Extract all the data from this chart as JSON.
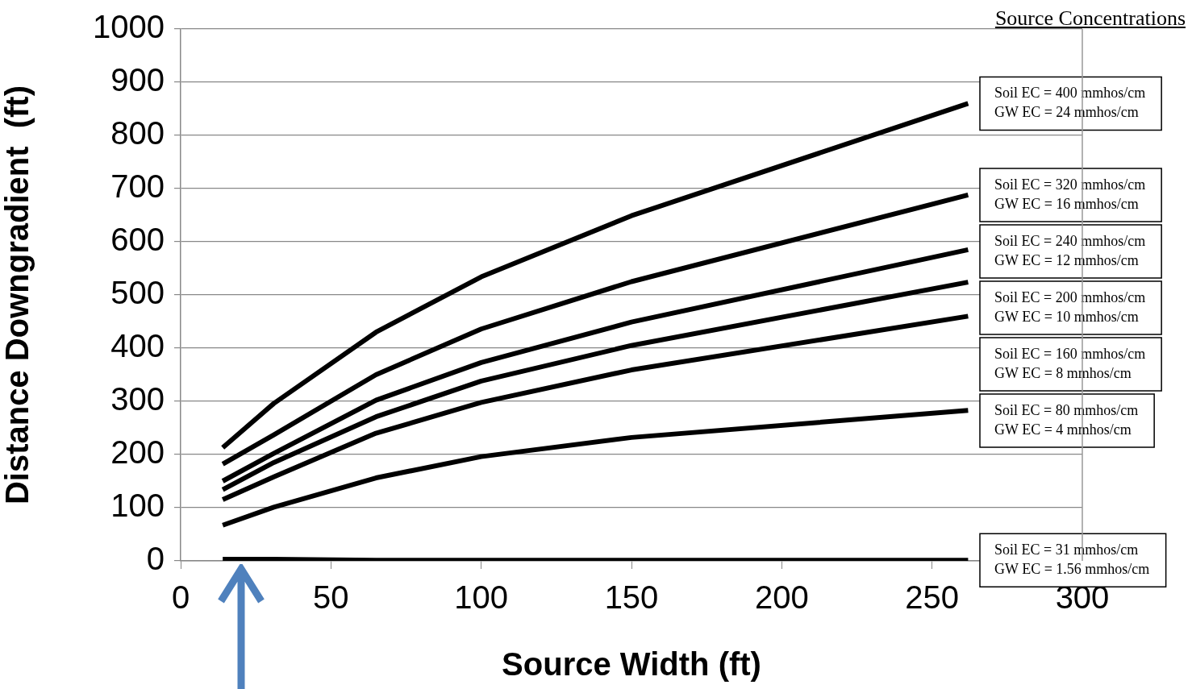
{
  "chart_data": {
    "type": "line",
    "xlabel": "Source Width (ft)",
    "ylabel": "Distance Downgradient  (ft)",
    "legend_title": "Source Concentrations",
    "x": [
      14,
      31,
      65,
      100,
      150,
      262
    ],
    "series": [
      {
        "name": "Soil EC = 400 mmhos/cm\nGW EC = 24 mmhos/cm",
        "color": "#000000",
        "values": [
          213,
          296,
          430,
          534,
          649,
          860
        ]
      },
      {
        "name": "Soil EC = 320 mmhos/cm\nGW EC = 16 mmhos/cm",
        "color": "#000000",
        "values": [
          182,
          237,
          350,
          436,
          525,
          688
        ]
      },
      {
        "name": "Soil EC = 240 mmhos/cm\nGW EC = 12 mmhos/cm",
        "color": "#000000",
        "values": [
          150,
          202,
          302,
          373,
          449,
          585
        ]
      },
      {
        "name": "Soil EC = 200 mmhos/cm\nGW EC = 10 mmhos/cm",
        "color": "#000000",
        "values": [
          134,
          185,
          271,
          338,
          405,
          524
        ]
      },
      {
        "name": "Soil EC = 160 mmhos/cm\nGW EC = 8 mmhos/cm",
        "color": "#000000",
        "values": [
          115,
          158,
          240,
          298,
          359,
          460
        ]
      },
      {
        "name": "Soil EC = 80 mmhos/cm\nGW EC = 4 mmhos/cm",
        "color": "#000000",
        "values": [
          67,
          101,
          156,
          196,
          232,
          283
        ]
      },
      {
        "name": "Soil EC = 31 mmhos/cm\nGW EC = 1.56 mmhos/cm",
        "color": "#000000",
        "values": [
          3,
          3,
          1,
          1,
          1,
          1
        ]
      }
    ],
    "xlim": [
      0,
      300
    ],
    "xticks": [
      0,
      50,
      100,
      150,
      200,
      250,
      300
    ],
    "ylim": [
      0,
      1000
    ],
    "yticks": [
      0,
      100,
      200,
      300,
      400,
      500,
      600,
      700,
      800,
      900,
      1000
    ],
    "grid": "y",
    "marker": "none",
    "line_style": "solid",
    "legend": "right"
  }
}
